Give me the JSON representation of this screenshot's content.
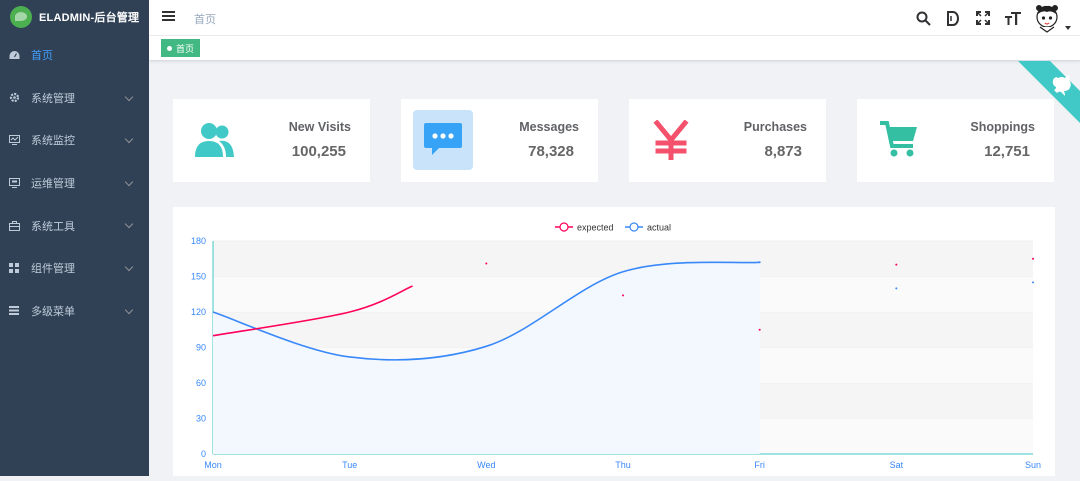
{
  "app": {
    "title": "ELADMIN-后台管理"
  },
  "sidebar": {
    "items": [
      {
        "label": "首页",
        "icon": "dashboard-icon",
        "active": true
      },
      {
        "label": "系统管理",
        "icon": "gear-icon"
      },
      {
        "label": "系统监控",
        "icon": "monitor-icon"
      },
      {
        "label": "运维管理",
        "icon": "server-icon"
      },
      {
        "label": "系统工具",
        "icon": "toolbox-icon"
      },
      {
        "label": "组件管理",
        "icon": "grid-icon"
      },
      {
        "label": "多级菜单",
        "icon": "list-icon"
      }
    ]
  },
  "navbar": {
    "breadcrumb": "首页",
    "icons": [
      "search-icon",
      "doc-icon",
      "fullscreen-icon",
      "font-size-icon"
    ]
  },
  "tags": {
    "active": "首页"
  },
  "cards": [
    {
      "label": "New Visits",
      "value": "100,255",
      "icon": "users-icon",
      "color": "#40c9c6"
    },
    {
      "label": "Messages",
      "value": "78,328",
      "icon": "message-icon",
      "color": "#36a3f7"
    },
    {
      "label": "Purchases",
      "value": "8,873",
      "icon": "yen-icon",
      "color": "#f4516c"
    },
    {
      "label": "Shoppings",
      "value": "12,751",
      "icon": "cart-icon",
      "color": "#34bfa3"
    }
  ],
  "colors": {
    "sidebar_bg": "#304156",
    "active": "#409eff",
    "tag": "#42b983",
    "corner": "#40c9c6"
  },
  "chart_data": {
    "type": "line",
    "categories": [
      "Mon",
      "Tue",
      "Wed",
      "Thu",
      "Fri",
      "Sat",
      "Sun"
    ],
    "series": [
      {
        "name": "expected",
        "color": "#ff005a",
        "values": [
          100,
          120,
          161,
          134,
          105,
          160,
          165
        ]
      },
      {
        "name": "actual",
        "color": "#3888fa",
        "values": [
          120,
          82,
          91,
          154,
          162,
          140,
          145
        ]
      }
    ],
    "yticks": [
      0,
      30,
      60,
      90,
      120,
      150,
      180
    ],
    "ylim": [
      0,
      180
    ],
    "legend": "top-center",
    "grid": true
  }
}
